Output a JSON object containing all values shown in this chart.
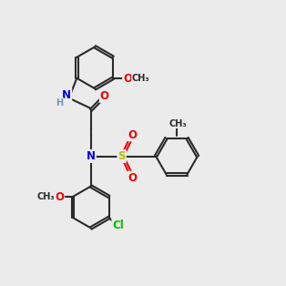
{
  "background_color": "#ebebeb",
  "bond_color": "#2a2a2a",
  "N_color": "#0000ee",
  "O_color": "#ee0000",
  "S_color": "#bbbb00",
  "Cl_color": "#00bb00",
  "H_color": "#7799aa",
  "font_size": 8.5,
  "lw": 1.5
}
